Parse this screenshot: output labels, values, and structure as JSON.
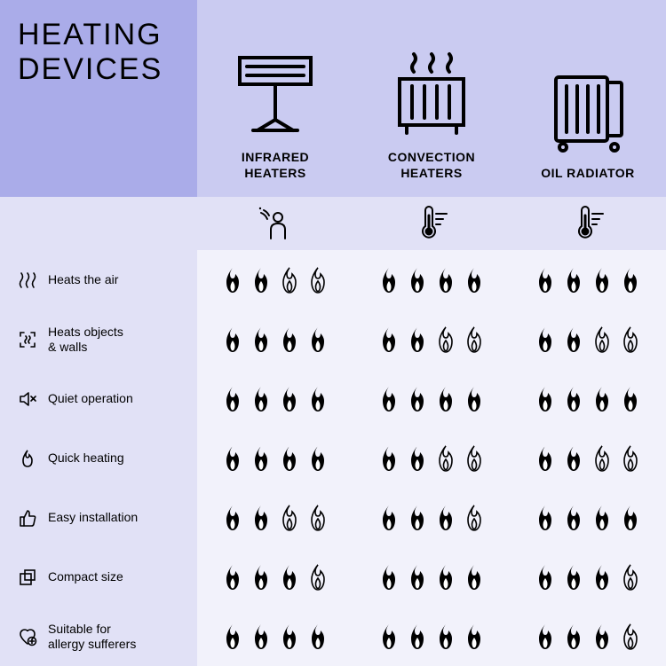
{
  "title": "HEATING\nDEVICES",
  "colors": {
    "title_bg": "#aaace9",
    "header_bg": "#cacbf1",
    "subrow_bg": "#e1e1f6",
    "criteria_bg": "#e1e1f6",
    "body_bg": "#f2f2fb",
    "stroke": "#000000",
    "fill": "#000000"
  },
  "flame_size": {
    "w": 26,
    "h": 30
  },
  "devices": [
    {
      "key": "infrared",
      "label": "INFRARED\nHEATERS",
      "icon": "infrared-heater-icon"
    },
    {
      "key": "convection",
      "label": "CONVECTION\nHEATERS",
      "icon": "convection-heater-icon"
    },
    {
      "key": "oil",
      "label": "OIL RADIATOR",
      "icon": "oil-radiator-icon"
    }
  ],
  "sub_icons": [
    "person-waves-icon",
    "thermometer-lines-icon",
    "thermometer-lines-icon"
  ],
  "criteria": [
    {
      "icon": "waves-icon",
      "label": "Heats the air"
    },
    {
      "icon": "frame-waves-icon",
      "label": "Heats objects\n& walls"
    },
    {
      "icon": "speaker-mute-icon",
      "label": "Quiet operation"
    },
    {
      "icon": "flame-icon",
      "label": "Quick heating"
    },
    {
      "icon": "thumbs-up-icon",
      "label": "Easy installation"
    },
    {
      "icon": "squares-icon",
      "label": "Compact size"
    },
    {
      "icon": "heart-plus-icon",
      "label": "Suitable for\nallergy sufferers"
    }
  ],
  "ratings": {
    "infrared": [
      2,
      4,
      4,
      4,
      2,
      3,
      4
    ],
    "convection": [
      4,
      2,
      4,
      2,
      3,
      4,
      4
    ],
    "oil": [
      4,
      2,
      4,
      2,
      4,
      3,
      3
    ]
  },
  "rating_max": 4
}
